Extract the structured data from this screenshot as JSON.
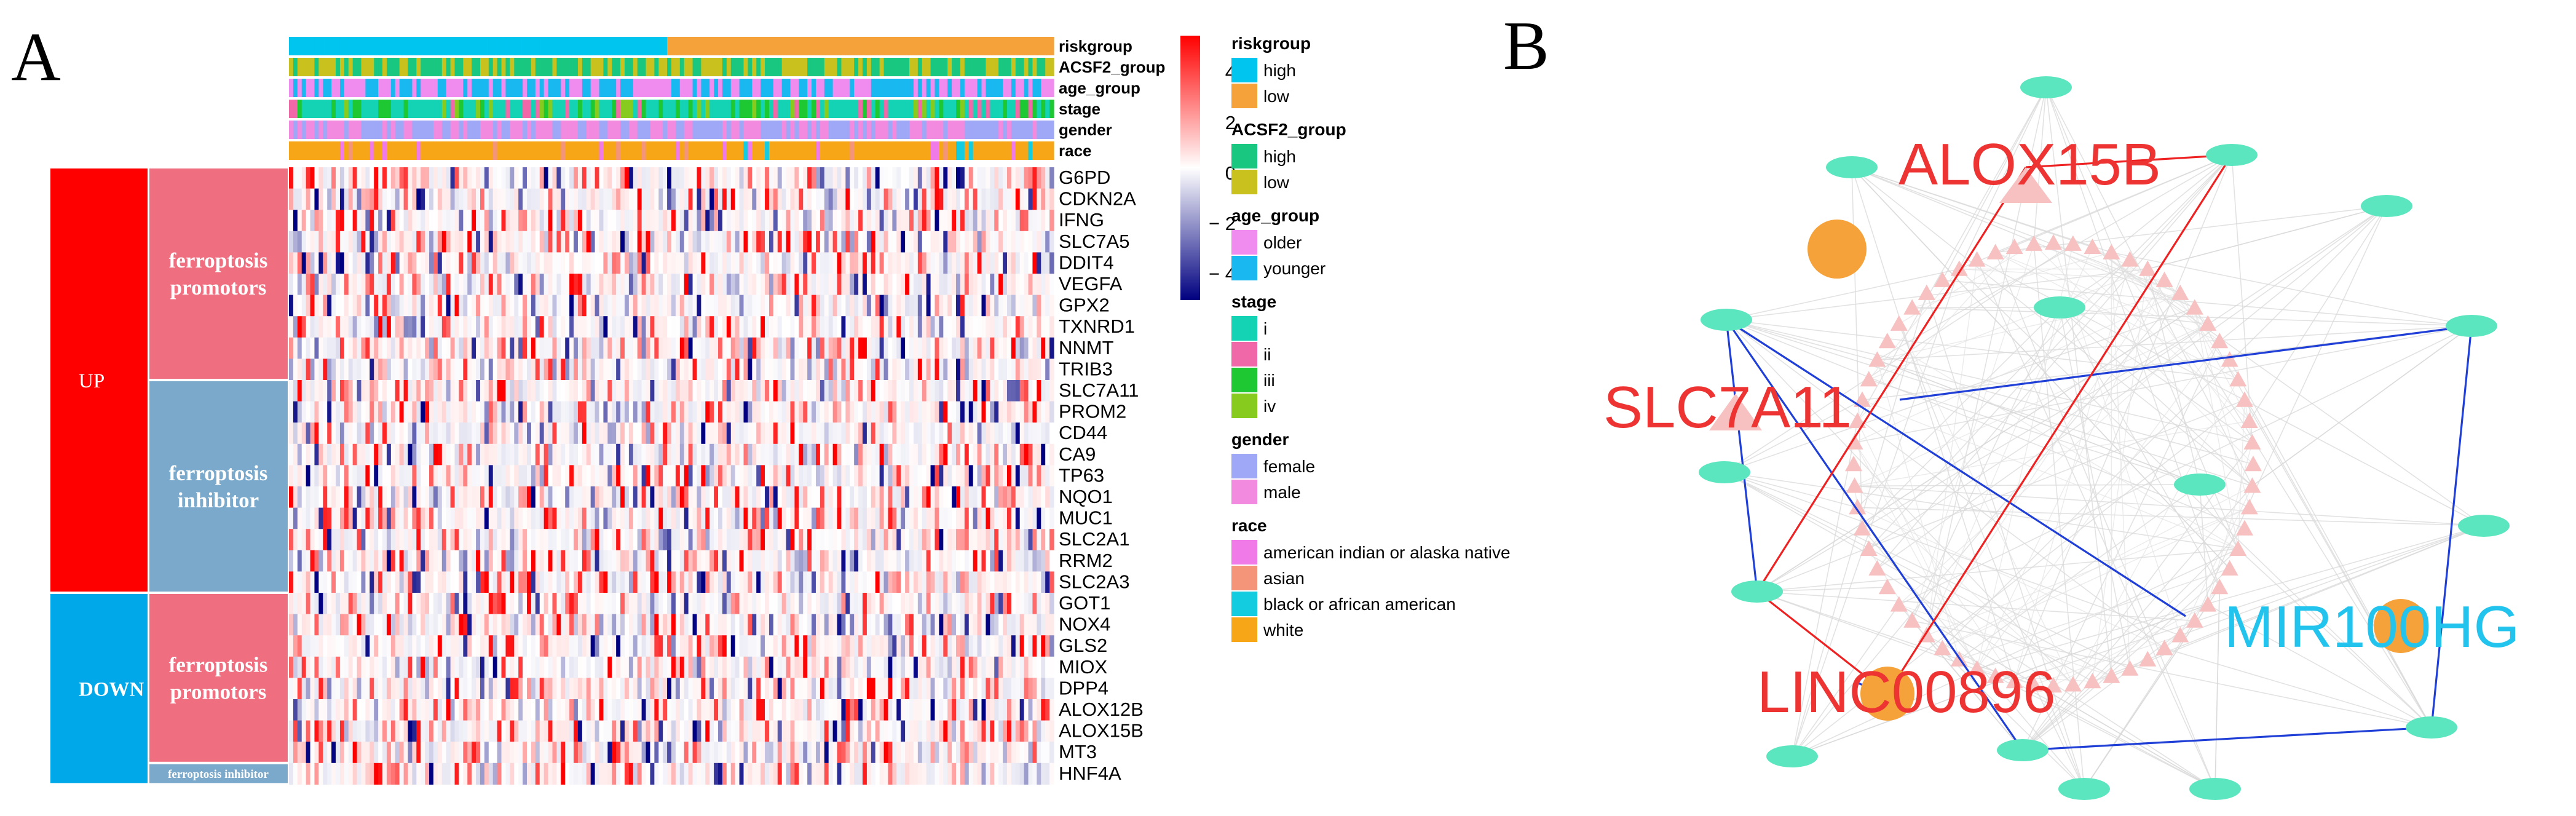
{
  "panel_a": {
    "label": "A",
    "categories": [
      {
        "direction": "UP",
        "color": "#ff0000",
        "groups": [
          {
            "name": "ferroptosis promotors",
            "color": "#ef6f80",
            "genes": [
              "G6PD",
              "CDKN2A",
              "IFNG",
              "SLC7A5",
              "DDIT4",
              "VEGFA",
              "GPX2",
              "TXNRD1",
              "NNMT",
              "TRIB3"
            ]
          },
          {
            "name": "ferroptosis inhibitor",
            "color": "#7aa9cb",
            "genes": [
              "SLC7A11",
              "PROM2",
              "CD44",
              "CA9",
              "TP63",
              "NQO1",
              "MUC1",
              "SLC2A1",
              "RRM2",
              "SLC2A3"
            ]
          }
        ]
      },
      {
        "direction": "DOWN",
        "color": "#00a8ea",
        "groups": [
          {
            "name": "ferroptosis promotors",
            "color": "#ef6f80",
            "genes": [
              "GOT1",
              "NOX4",
              "GLS2",
              "MIOX",
              "DPP4",
              "ALOX12B",
              "ALOX15B",
              "MT3"
            ]
          },
          {
            "name": "ferroptosis inhibitor",
            "color": "#7aa9cb",
            "genes": [
              "HNF4A"
            ]
          }
        ]
      }
    ],
    "annotation_tracks": [
      "riskgroup",
      "ACSF2_group",
      "age_group",
      "stage",
      "gender",
      "race"
    ],
    "colorbar": {
      "ticks": [
        "4",
        "2",
        "0",
        "− 2",
        "− 4"
      ],
      "high": "#ff0000",
      "mid": "#ffffff",
      "low": "#000080"
    },
    "legend": [
      {
        "title": "riskgroup",
        "items": [
          {
            "label": "high",
            "color": "#00c5ef"
          },
          {
            "label": "low",
            "color": "#f6a23a"
          }
        ]
      },
      {
        "title": "ACSF2_group",
        "items": [
          {
            "label": "high",
            "color": "#19c781"
          },
          {
            "label": "low",
            "color": "#c9c21e"
          }
        ]
      },
      {
        "title": "age_group",
        "items": [
          {
            "label": "older",
            "color": "#f08cf0"
          },
          {
            "label": "younger",
            "color": "#19b8f0"
          }
        ]
      },
      {
        "title": "stage",
        "items": [
          {
            "label": "i",
            "color": "#14d2b4"
          },
          {
            "label": "ii",
            "color": "#f068a8"
          },
          {
            "label": "iii",
            "color": "#1ec832"
          },
          {
            "label": "iv",
            "color": "#86cb1e"
          }
        ]
      },
      {
        "title": "gender",
        "items": [
          {
            "label": "female",
            "color": "#9ea8f6"
          },
          {
            "label": "male",
            "color": "#f28ae0"
          }
        ]
      },
      {
        "title": "race",
        "items": [
          {
            "label": "american indian or alaska native",
            "color": "#f07ae8"
          },
          {
            "label": "asian",
            "color": "#f49478"
          },
          {
            "label": "black or african american",
            "color": "#14cce0"
          },
          {
            "label": "white",
            "color": "#f6a617"
          }
        ]
      }
    ]
  },
  "panel_b": {
    "label": "B",
    "labels": {
      "alox15b": "ALOX15B",
      "slc7a11": "SLC7A11",
      "linc00896": "LINC00896",
      "mir100hg": "MIR100HG"
    }
  }
}
